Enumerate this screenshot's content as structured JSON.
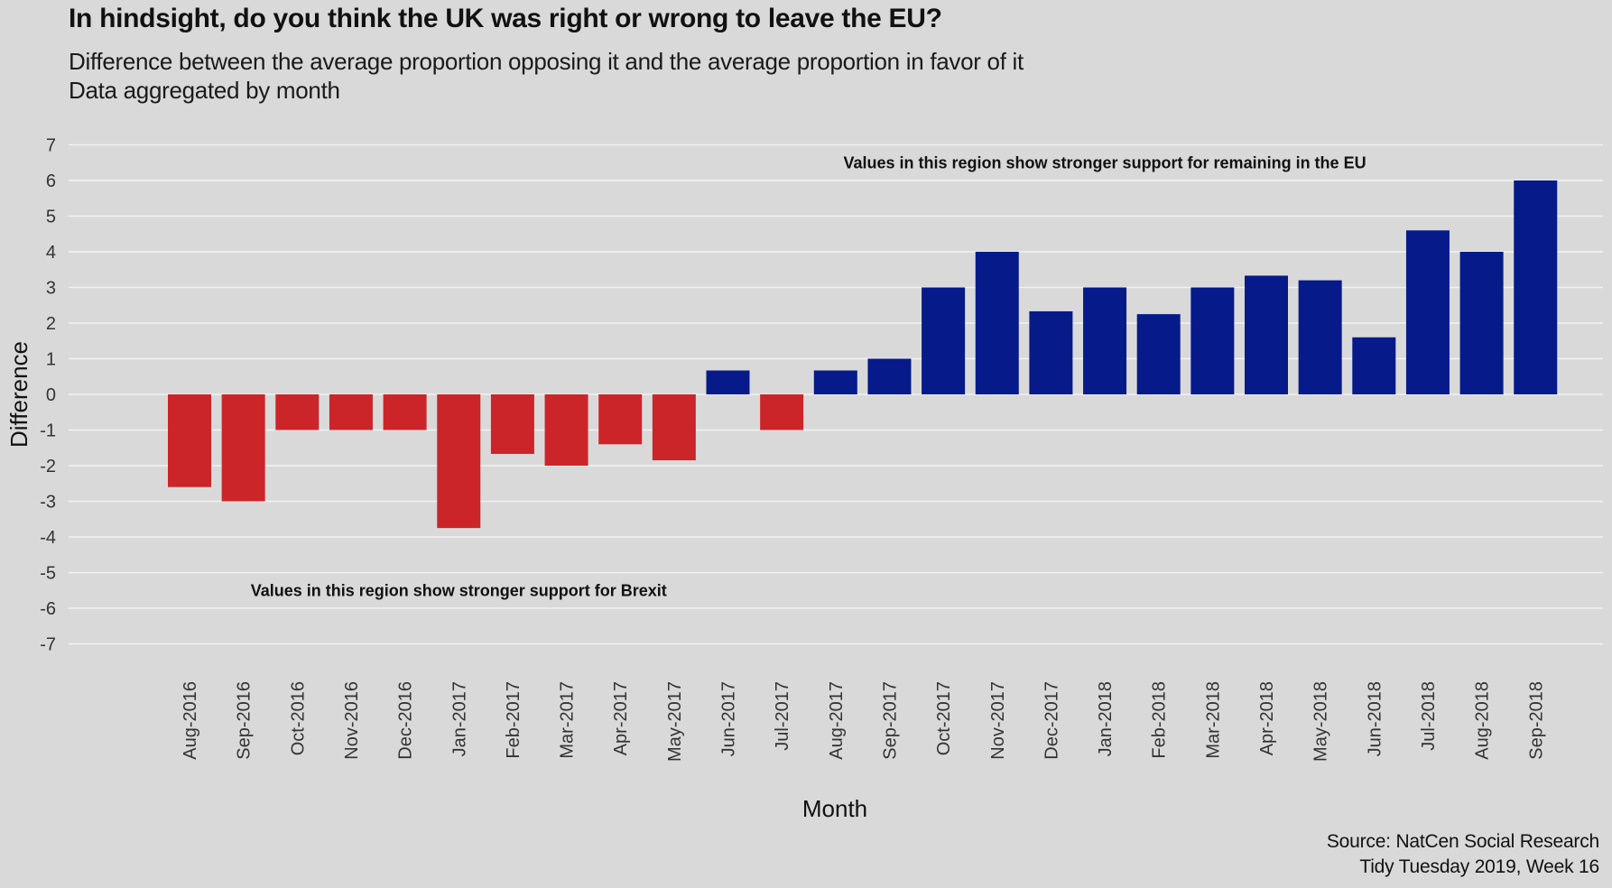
{
  "title": "In hindsight, do you think the UK was right or wrong to leave the EU?",
  "subtitle_line1": "Difference between the average proportion opposing it and the average proportion in favor of it",
  "subtitle_line2": "Data aggregated by month",
  "caption_line1": "Source: NatCen Social Research",
  "caption_line2": "Tidy Tuesday 2019, Week 16",
  "colors": {
    "background": "#d9d9d9",
    "grid": "#f2f2f2",
    "negative": "#cc2529",
    "positive": "#061a8a"
  },
  "chart_data": {
    "type": "bar",
    "xlabel": "Month",
    "ylabel": "Difference",
    "ylim": [
      -7,
      7
    ],
    "yticks": [
      7,
      6,
      5,
      4,
      3,
      2,
      1,
      0,
      -1,
      -2,
      -3,
      -4,
      -5,
      -6,
      -7
    ],
    "grid": true,
    "categories": [
      "Aug-2016",
      "Sep-2016",
      "Oct-2016",
      "Nov-2016",
      "Dec-2016",
      "Jan-2017",
      "Feb-2017",
      "Mar-2017",
      "Apr-2017",
      "May-2017",
      "Jun-2017",
      "Jul-2017",
      "Aug-2017",
      "Sep-2017",
      "Oct-2017",
      "Nov-2017",
      "Dec-2017",
      "Jan-2018",
      "Feb-2018",
      "Mar-2018",
      "Apr-2018",
      "May-2018",
      "Jun-2018",
      "Jul-2018",
      "Aug-2018",
      "Sep-2018"
    ],
    "values": [
      -2.6,
      -3.0,
      -1.0,
      -1.0,
      -1.0,
      -3.75,
      -1.67,
      -2.0,
      -1.4,
      -1.85,
      0.67,
      -1.0,
      0.67,
      1.0,
      3.0,
      4.0,
      2.33,
      3.0,
      2.25,
      3.0,
      3.33,
      3.2,
      1.6,
      4.6,
      4.0,
      6.0
    ],
    "annotations": [
      {
        "text": "Values in this region show stronger support for remaining in the EU",
        "x": "Jan-2018",
        "y": 6.5
      },
      {
        "text": "Values in this region show stronger support for Brexit",
        "x": "Jan-2017",
        "y": -5.5
      }
    ]
  }
}
